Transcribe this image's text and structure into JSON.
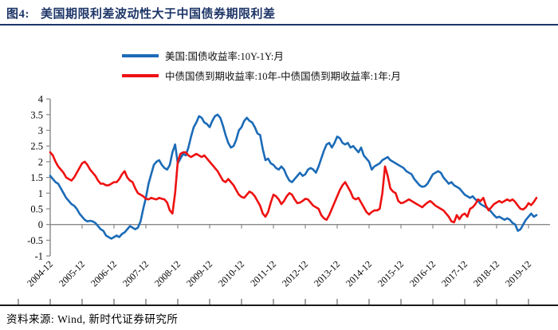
{
  "figure": {
    "label": "图4:",
    "title": "美国期限利差波动性大于中国债券期限利差",
    "source_label": "资料来源:",
    "source_text": "Wind, 新时代证券研究所"
  },
  "colors": {
    "title_navy": "#1e3668",
    "us_blue": "#1c6bb7",
    "china_red": "#ee1111",
    "axis_gray": "#898989",
    "tick_text": "#000000"
  },
  "chart_data": {
    "type": "line",
    "title": "美国期限利差波动性大于中国债券期限利差",
    "xlabel": "",
    "ylabel": "",
    "x_unit": "month",
    "x_start": "2004-12",
    "x_end": "2020-03",
    "ylim": [
      -1,
      4
    ],
    "y_ticks": [
      4,
      3.5,
      3,
      2.5,
      2,
      1.5,
      1,
      0.5,
      0,
      -0.5,
      -1
    ],
    "x_tick_labels": [
      "2004-12",
      "2005-12",
      "2006-12",
      "2007-12",
      "2008-12",
      "2009-12",
      "2010-12",
      "2011-12",
      "2012-12",
      "2013-12",
      "2014-12",
      "2015-12",
      "2016-12",
      "2017-12",
      "2018-12",
      "2019-12"
    ],
    "grid": "zero-line-only",
    "legend_position": "top-center",
    "series": [
      {
        "name": "美国:国债收益率:10Y-1Y:月",
        "color": "#1c6bb7",
        "values": [
          1.55,
          1.45,
          1.35,
          1.3,
          1.15,
          1.0,
          0.85,
          0.75,
          0.65,
          0.6,
          0.5,
          0.35,
          0.25,
          0.15,
          0.1,
          0.12,
          0.1,
          0.05,
          -0.05,
          -0.15,
          -0.2,
          -0.35,
          -0.4,
          -0.45,
          -0.4,
          -0.35,
          -0.4,
          -0.3,
          -0.25,
          -0.15,
          -0.05,
          -0.1,
          -0.15,
          -0.1,
          0.1,
          0.5,
          0.85,
          1.3,
          1.6,
          1.9,
          2.0,
          2.05,
          1.9,
          1.8,
          1.75,
          1.9,
          2.3,
          2.55,
          1.95,
          2.1,
          2.25,
          2.2,
          2.45,
          2.8,
          3.1,
          3.25,
          3.45,
          3.4,
          3.25,
          3.2,
          3.1,
          3.3,
          3.45,
          3.5,
          3.4,
          3.15,
          2.85,
          2.6,
          2.45,
          2.5,
          2.7,
          3.0,
          3.1,
          3.3,
          3.4,
          3.3,
          3.25,
          3.1,
          2.9,
          2.85,
          2.4,
          2.05,
          2.1,
          1.95,
          1.9,
          1.8,
          1.75,
          1.85,
          1.75,
          1.55,
          1.4,
          1.35,
          1.45,
          1.55,
          1.65,
          1.55,
          1.6,
          1.75,
          1.8,
          1.75,
          1.65,
          1.85,
          2.1,
          2.35,
          2.55,
          2.6,
          2.45,
          2.6,
          2.8,
          2.75,
          2.6,
          2.55,
          2.6,
          2.45,
          2.5,
          2.4,
          2.3,
          2.45,
          2.2,
          2.1,
          2.0,
          1.75,
          1.85,
          1.9,
          1.95,
          2.05,
          2.1,
          2.15,
          2.05,
          2.0,
          1.95,
          1.9,
          1.85,
          1.8,
          1.7,
          1.65,
          1.6,
          1.45,
          1.35,
          1.25,
          1.2,
          1.22,
          1.3,
          1.45,
          1.6,
          1.65,
          1.7,
          1.65,
          1.5,
          1.4,
          1.3,
          1.35,
          1.25,
          1.2,
          1.15,
          1.05,
          0.95,
          0.9,
          0.85,
          0.9,
          0.8,
          0.75,
          0.65,
          0.6,
          0.55,
          0.5,
          0.4,
          0.3,
          0.22,
          0.25,
          0.2,
          0.15,
          0.2,
          0.15,
          0.05,
          0.0,
          -0.2,
          -0.15,
          0.0,
          0.15,
          0.25,
          0.35,
          0.25,
          0.3
        ]
      },
      {
        "name": "中债国债到期收益率:10年-中债国债到期收益率:1年:月",
        "color": "#ee1111",
        "values": [
          2.3,
          2.2,
          2.0,
          1.85,
          1.75,
          1.65,
          1.5,
          1.45,
          1.4,
          1.5,
          1.65,
          1.8,
          1.95,
          2.0,
          1.9,
          1.75,
          1.65,
          1.55,
          1.4,
          1.3,
          1.3,
          1.25,
          1.25,
          1.3,
          1.35,
          1.35,
          1.45,
          1.6,
          1.7,
          1.5,
          1.4,
          1.35,
          1.15,
          1.0,
          0.95,
          0.9,
          0.82,
          0.8,
          0.85,
          0.82,
          0.8,
          0.85,
          0.82,
          0.8,
          0.7,
          0.45,
          0.35,
          1.0,
          2.0,
          2.25,
          2.3,
          2.3,
          2.2,
          2.15,
          2.2,
          2.25,
          2.2,
          2.15,
          2.2,
          2.1,
          2.0,
          1.9,
          1.8,
          1.7,
          1.55,
          1.4,
          1.35,
          1.45,
          1.35,
          1.25,
          1.1,
          0.95,
          0.88,
          0.85,
          0.95,
          1.05,
          1.0,
          0.9,
          0.75,
          0.6,
          0.35,
          0.25,
          0.4,
          0.7,
          0.95,
          0.9,
          0.8,
          0.65,
          0.75,
          0.9,
          1.0,
          0.95,
          0.8,
          0.68,
          0.7,
          0.75,
          0.82,
          0.8,
          0.7,
          0.6,
          0.55,
          0.5,
          0.3,
          0.2,
          0.15,
          0.3,
          0.5,
          0.7,
          0.9,
          1.1,
          1.25,
          1.35,
          1.2,
          1.05,
          0.85,
          0.8,
          0.85,
          0.7,
          0.55,
          0.4,
          0.32,
          0.4,
          0.45,
          0.45,
          0.5,
          1.0,
          1.85,
          1.55,
          1.15,
          1.05,
          1.0,
          0.75,
          0.68,
          0.7,
          0.75,
          0.8,
          0.75,
          0.7,
          0.65,
          0.6,
          0.55,
          0.63,
          0.7,
          0.75,
          0.68,
          0.6,
          0.55,
          0.5,
          0.45,
          0.35,
          0.25,
          0.1,
          0.07,
          0.3,
          0.17,
          0.3,
          0.35,
          0.25,
          0.5,
          0.55,
          0.65,
          0.8,
          0.75,
          0.85,
          0.6,
          0.45,
          0.55,
          0.65,
          0.7,
          0.75,
          0.7,
          0.75,
          0.8,
          0.75,
          0.8,
          0.72,
          0.6,
          0.5,
          0.48,
          0.55,
          0.68,
          0.62,
          0.72,
          0.85
        ]
      }
    ]
  }
}
